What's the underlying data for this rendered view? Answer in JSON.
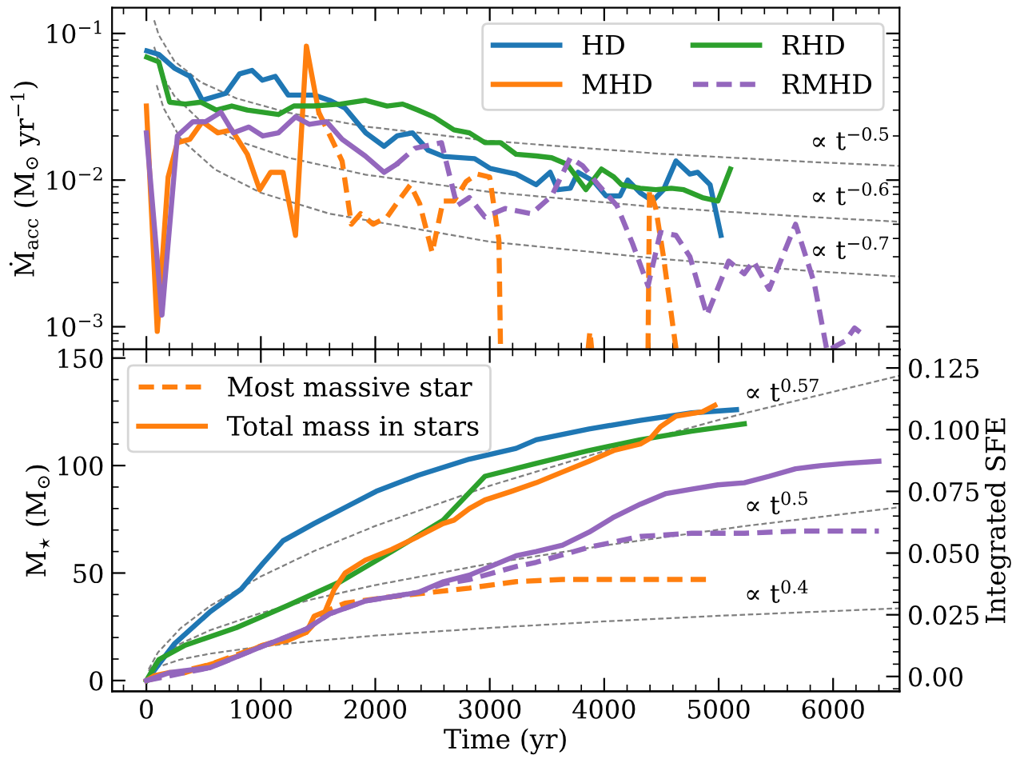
{
  "chart_data": [
    {
      "type": "line",
      "ylabel": "Ṁ$_{acc}$ (M$_{⊙}$ yr$^{−1}$)",
      "log": "y",
      "xlim": [
        -300,
        6580
      ],
      "xticks": [
        0,
        1000,
        2000,
        3000,
        4000,
        5000,
        6000
      ],
      "ylim": [
        0.0007,
        0.15
      ],
      "yticks": [
        {
          "value": 0.001,
          "label": "10$^{−3}$"
        },
        {
          "value": 0.01,
          "label": "10$^{−2}$"
        },
        {
          "value": 0.1,
          "label": "10$^{−1}$"
        }
      ],
      "tick_labels": "y",
      "legend": "top right",
      "annotations": [
        "∝ t$^{−0.5}$",
        "∝ t$^{−0.6}$",
        "∝ t$^{−0.7}$"
      ],
      "series": [
        {
          "name": "HD",
          "color": "#1f77b4",
          "line_style": "solid",
          "x": [
            4,
            108,
            244,
            380,
            489,
            692,
            814,
            923,
            1013,
            1126,
            1239,
            1465,
            1600,
            1736,
            1917,
            2076,
            2190,
            2325,
            2461,
            2597,
            2868,
            3004,
            3230,
            3406,
            3528,
            3596,
            3704,
            3772,
            3908,
            4016,
            4138,
            4206,
            4315,
            4423,
            4518,
            4627,
            4749,
            4817,
            4925,
            5020
          ],
          "values": [
            0.076,
            0.072,
            0.058,
            0.051,
            0.035,
            0.039,
            0.053,
            0.056,
            0.048,
            0.051,
            0.038,
            0.038,
            0.035,
            0.031,
            0.021,
            0.017,
            0.02,
            0.021,
            0.016,
            0.0145,
            0.014,
            0.012,
            0.011,
            0.0093,
            0.0113,
            0.0086,
            0.0088,
            0.0113,
            0.0098,
            0.0078,
            0.0078,
            0.01,
            0.0082,
            0.0072,
            0.0086,
            0.0135,
            0.011,
            0.0113,
            0.0093,
            0.0042
          ]
        },
        {
          "name": "MHD",
          "color": "#ff7f0e",
          "line_style": "solid",
          "x": [
            0,
            95,
            190,
            271,
            380,
            489,
            624,
            746,
            882,
            990,
            1085,
            1194,
            1303,
            1398,
            1506
          ],
          "values": [
            0.032,
            0.00093,
            0.0105,
            0.018,
            0.019,
            0.025,
            0.021,
            0.022,
            0.015,
            0.0086,
            0.0113,
            0.0113,
            0.0042,
            0.082,
            0.029
          ]
        },
        {
          "color": "#ff7f0e",
          "line_style": "dashed",
          "x": [
            1506,
            1710,
            1791,
            1872,
            1981,
            2103,
            2185,
            2307,
            2388,
            2497,
            2592,
            2687,
            2795,
            2890,
            2999,
            3080,
            3094,
            3300,
            3860,
            3875,
            3890,
            4100,
            4383,
            4396,
            4451,
            4518,
            4627
          ],
          "values": [
            0.029,
            0.0135,
            0.005,
            0.0059,
            0.005,
            0.0056,
            0.0069,
            0.0093,
            0.0069,
            0.0032,
            0.0072,
            0.0072,
            0.0098,
            0.011,
            0.0105,
            0.0039,
            0.00071,
            null,
            0.00071,
            0.00093,
            0.00071,
            null,
            0.00071,
            0.0086,
            0.0064,
            0.003,
            0.00071
          ]
        },
        {
          "name": "RHD",
          "color": "#2ca02c",
          "line_style": "solid",
          "x": [
            4,
            108,
            203,
            339,
            475,
            611,
            746,
            882,
            1018,
            1153,
            1289,
            1465,
            1696,
            1913,
            2103,
            2239,
            2374,
            2510,
            2687,
            2822,
            2958,
            3094,
            3230,
            3406,
            3541,
            3677,
            3840,
            3976,
            4084,
            4152,
            4315,
            4451,
            4586,
            4695,
            4858,
            4993,
            5102
          ],
          "values": [
            0.069,
            0.064,
            0.034,
            0.033,
            0.034,
            0.03,
            0.032,
            0.03,
            0.029,
            0.028,
            0.032,
            0.032,
            0.033,
            0.035,
            0.032,
            0.033,
            0.03,
            0.027,
            0.022,
            0.021,
            0.018,
            0.018,
            0.015,
            0.0146,
            0.0142,
            0.0128,
            0.0086,
            0.0119,
            0.0105,
            0.0093,
            0.0088,
            0.0086,
            0.0088,
            0.0086,
            0.0076,
            0.0072,
            0.0119
          ]
        },
        {
          "color": "#9467bd",
          "line_style": "solid",
          "x": [
            0,
            136,
            271,
            407,
            516,
            651,
            760,
            896,
            1018,
            1153,
            1303,
            1425,
            1574,
            1710,
            1913,
            2076,
            2185
          ],
          "values": [
            0.021,
            0.0012,
            0.02,
            0.025,
            0.025,
            0.029,
            0.021,
            0.023,
            0.02,
            0.021,
            0.027,
            0.024,
            0.025,
            0.019,
            0.0146,
            0.0113,
            0.0128
          ]
        },
        {
          "name": "RMHD",
          "color": "#9467bd",
          "line_style": "dashed",
          "x": [
            2185,
            2347,
            2578,
            2714,
            2822,
            2958,
            3134,
            3365,
            3541,
            3704,
            3813,
            3948,
            4111,
            4247,
            4383,
            4491,
            4627,
            4749,
            4898,
            5088,
            5224,
            5305,
            5441,
            5672,
            5834,
            5943,
            5960,
            5984,
            6106,
            6187,
            6282
          ],
          "values": [
            0.0128,
            0.0165,
            0.018,
            0.0067,
            0.0076,
            0.0056,
            0.0064,
            0.0059,
            0.0078,
            0.0142,
            0.0125,
            0.0093,
            0.0067,
            0.0037,
            0.0019,
            0.0044,
            0.0042,
            0.003,
            0.0012,
            0.0028,
            0.0023,
            0.0028,
            0.0018,
            0.005,
            0.002,
            0.00071,
            null,
            0.00071,
            0.0008,
            0.00098,
            0.00086
          ]
        },
        {
          "color": "#808080",
          "line_style": "dashed",
          "x": [
            68,
            108,
            244,
            475,
            787,
            1239,
            1913,
            3000,
            4500,
            5800,
            6580
          ],
          "values": [
            0.123,
            0.0976,
            0.0649,
            0.0465,
            0.0361,
            0.0288,
            0.0232,
            0.0185,
            0.0151,
            0.0133,
            0.0125
          ]
        },
        {
          "color": "#808080",
          "line_style": "dashed",
          "x": [
            68,
            150,
            244,
            475,
            787,
            1239,
            1913,
            3000,
            4500,
            5800,
            6580
          ],
          "values": [
            0.081,
            0.05,
            0.0375,
            0.0252,
            0.0186,
            0.0142,
            0.0109,
            0.0083,
            0.0065,
            0.0056,
            0.0052
          ]
        },
        {
          "color": "#808080",
          "line_style": "dashed",
          "x": [
            90,
            150,
            300,
            600,
            1000,
            1600,
            3000,
            4500,
            5800,
            6580
          ],
          "values": [
            0.0444,
            0.031,
            0.0191,
            0.0118,
            0.0082,
            0.0059,
            0.0038,
            0.0029,
            0.0024,
            0.0022
          ]
        }
      ]
    },
    {
      "type": "line",
      "xlabel": "Time (yr)",
      "ylabel": "M$_{⋆}$ (M$_{⊙}$)",
      "y2label": "Integrated SFE",
      "xlim": [
        -300,
        6580
      ],
      "xticks": [
        0,
        1000,
        2000,
        3000,
        4000,
        5000,
        6000
      ],
      "ylim": [
        -5,
        154
      ],
      "yticks": [
        0,
        50,
        100,
        150
      ],
      "y2lim": [
        -0.006,
        0.1325
      ],
      "y2ticks": [
        {
          "value": 0,
          "label": "0.00"
        },
        0.025,
        {
          "value": 0.05,
          "label": "0.050"
        },
        0.075,
        {
          "value": 0.1,
          "label": "0.100"
        },
        0.125
      ],
      "legend": "top left",
      "annotations": [
        "∝ t$^{0.57}$",
        "∝ t$^{0.5}$",
        "∝ t$^{0.4}$"
      ],
      "series": [
        {
          "color": "#1f77b4",
          "line_style": "solid",
          "x": [
            4,
            108,
            244,
            557,
            828,
            1018,
            1194,
            1465,
            1736,
            2008,
            2374,
            2822,
            3230,
            3406,
            3867,
            4315,
            4763,
            5156
          ],
          "values": [
            0,
            7.5,
            17,
            32,
            42.5,
            54.5,
            65,
            73,
            80.5,
            88,
            95.5,
            103,
            108,
            112,
            117,
            121,
            124.5,
            126
          ]
        },
        {
          "color": "#2ca02c",
          "line_style": "solid",
          "x": [
            0,
            108,
            339,
            787,
            1239,
            1696,
            2144,
            2592,
            2958,
            3406,
            3867,
            4315,
            4763,
            5224
          ],
          "values": [
            0,
            9.7,
            16.4,
            24.6,
            35,
            46,
            60,
            74.6,
            95,
            101,
            107,
            112,
            116,
            119.4
          ]
        },
        {
          "name": "Most massive star",
          "color": "#ff7f0e",
          "line_style": "dashed",
          "x": [
            0,
            556,
            1018,
            1398,
            1560,
            1736,
            2144,
            2822,
            3230,
            3636,
            4200,
            4900
          ],
          "values": [
            0,
            7.5,
            16.4,
            22.4,
            32,
            36,
            39,
            43,
            46,
            47,
            47,
            47
          ]
        },
        {
          "name": "Total mass in stars",
          "color": "#ff7f0e",
          "line_style": "solid",
          "x": [
            0,
            68,
            203,
            339,
            556,
            787,
            1018,
            1239,
            1398,
            1465,
            1560,
            1642,
            1736,
            1913,
            2144,
            2375,
            2592,
            2687,
            2822,
            2958,
            3189,
            3406,
            3636,
            3867,
            4084,
            4315,
            4410,
            4491,
            4627,
            4858,
            4966
          ],
          "values": [
            0,
            2.2,
            3.7,
            3.7,
            7.5,
            11.2,
            16.4,
            18.7,
            22.4,
            29.9,
            32,
            42.5,
            50,
            56,
            61,
            67,
            73,
            74.6,
            80,
            84,
            88,
            92,
            97,
            102,
            107,
            110,
            113,
            118,
            123,
            125,
            128
          ]
        },
        {
          "color": "#9467bd",
          "line_style": "solid",
          "x": [
            0,
            203,
            556,
            1018,
            1398,
            1600,
            1913,
            2375,
            2597,
            2822,
            3230,
            3406,
            3636,
            3867,
            4084,
            4315,
            4541,
            4763,
            4993,
            5224,
            5441,
            5672,
            5898,
            6114,
            6400
          ],
          "values": [
            0,
            3.7,
            6,
            16,
            24,
            31,
            37,
            41,
            46,
            49,
            58,
            60,
            63,
            69,
            76,
            82,
            87,
            89,
            91,
            92,
            95,
            98.5,
            100,
            101,
            102
          ]
        },
        {
          "color": "#9467bd",
          "line_style": "dashed",
          "x": [
            0,
            556,
            1018,
            1398,
            1600,
            1913,
            2375,
            2597,
            2822,
            3230,
            3406,
            3867,
            4315,
            4763,
            5224,
            5672,
            6400
          ],
          "values": [
            0,
            6,
            16,
            24,
            31,
            37,
            41,
            45,
            47,
            53,
            55,
            62,
            67,
            68.5,
            68.5,
            69.5,
            69.5
          ]
        },
        {
          "color": "#808080",
          "line_style": "dashed",
          "x": [
            20,
            100,
            300,
            556,
            1000,
            1465,
            2000,
            3000,
            4000,
            5000,
            5224,
            6580
          ],
          "values": [
            5.2,
            13,
            24.4,
            34.7,
            48.4,
            60.2,
            71.9,
            90.6,
            106.7,
            121.2,
            124.3,
            141.8
          ]
        },
        {
          "color": "#808080",
          "line_style": "dashed",
          "x": [
            20,
            100,
            300,
            556,
            1000,
            1465,
            2000,
            3000,
            4000,
            5224,
            6580
          ],
          "values": [
            4.4,
            9.9,
            17.2,
            23.4,
            31.4,
            38,
            44.4,
            54.4,
            62.8,
            71.8,
            80.6
          ]
        },
        {
          "color": "#808080",
          "line_style": "dashed",
          "x": [
            20,
            100,
            300,
            556,
            1000,
            1465,
            2000,
            3000,
            4000,
            5000,
            5224,
            6580
          ],
          "values": [
            3.3,
            6.3,
            9.8,
            12.5,
            15.8,
            18.4,
            20.9,
            24.5,
            27.5,
            30.1,
            30.6,
            33.6
          ]
        }
      ]
    }
  ]
}
